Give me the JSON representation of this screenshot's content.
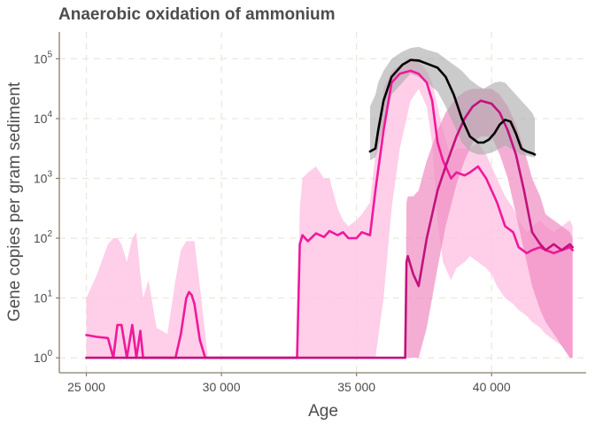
{
  "chart_data": {
    "type": "line",
    "title": "Anaerobic oxidation of ammonium",
    "xlabel": "Age",
    "ylabel": "Gene copies per gram sediment",
    "xlim": [
      24000,
      43500
    ],
    "ylim_log10": [
      -0.25,
      5.45
    ],
    "y_scale": "log10",
    "grid": true,
    "x_ticks": [
      {
        "value": 25000,
        "label": "25 000"
      },
      {
        "value": 30000,
        "label": "30 000"
      },
      {
        "value": 35000,
        "label": "35 000"
      },
      {
        "value": 40000,
        "label": "40 000"
      }
    ],
    "y_ticks": [
      {
        "value": 0,
        "base": "10",
        "exp": "0"
      },
      {
        "value": 1,
        "base": "10",
        "exp": "1"
      },
      {
        "value": 2,
        "base": "10",
        "exp": "2"
      },
      {
        "value": 3,
        "base": "10",
        "exp": "3"
      },
      {
        "value": 4,
        "base": "10",
        "exp": "4"
      },
      {
        "value": 5,
        "base": "10",
        "exp": "5"
      }
    ],
    "series": [
      {
        "color": "#f0199a",
        "band_color": "#ffc2e4",
        "band_opacity": 0.8,
        "x": [
          25000,
          25400,
          25800,
          26000,
          26150,
          26300,
          26500,
          26700,
          26850,
          27000,
          27100,
          27300,
          27600,
          28000,
          28300,
          28500,
          28700,
          28800,
          28900,
          29000,
          29200,
          29400,
          29500,
          30000,
          32800,
          32900,
          33000,
          33200,
          33500,
          33800,
          34000,
          34300,
          34500,
          34700,
          35000,
          35200,
          35500,
          35700,
          36000,
          36300,
          36600,
          37000,
          37300,
          37600,
          37800,
          38000,
          38200,
          38400,
          38500,
          38700,
          39000,
          39200,
          39500,
          39800,
          40000,
          40200,
          40500,
          40800,
          41000,
          41300,
          41500,
          41800,
          42000,
          42300,
          42600,
          42900,
          43000
        ],
        "y": [
          0.38,
          0.35,
          0.33,
          0.0,
          0.55,
          0.55,
          0.0,
          0.55,
          0.0,
          0.45,
          0.0,
          0.0,
          0.0,
          0.0,
          0.0,
          0.4,
          1.0,
          1.1,
          1.05,
          0.9,
          0.3,
          0.0,
          0.0,
          0.0,
          0.0,
          1.9,
          2.05,
          1.95,
          2.08,
          2.02,
          2.12,
          2.05,
          2.1,
          2.0,
          2.0,
          2.1,
          2.05,
          2.8,
          3.8,
          4.6,
          4.75,
          4.8,
          4.75,
          4.6,
          4.3,
          3.6,
          3.3,
          3.1,
          3.0,
          3.1,
          3.05,
          3.1,
          3.2,
          3.0,
          2.8,
          2.6,
          2.2,
          2.1,
          1.85,
          1.75,
          1.8,
          1.85,
          1.8,
          1.75,
          1.8,
          1.85,
          1.8
        ],
        "lower": [
          0.0,
          0.0,
          0.0,
          0.0,
          0.0,
          0.0,
          0.0,
          0.0,
          0.0,
          0.0,
          0.0,
          0.0,
          0.0,
          0.0,
          0.0,
          0.0,
          0.0,
          0.0,
          0.0,
          0.0,
          0.0,
          0.0,
          0.0,
          0.0,
          0.0,
          0.0,
          0.0,
          0.0,
          0.0,
          0.0,
          0.0,
          0.0,
          0.0,
          0.0,
          0.0,
          0.0,
          0.0,
          0.0,
          1.0,
          2.5,
          3.5,
          4.3,
          4.5,
          4.2,
          3.6,
          2.3,
          1.6,
          1.4,
          1.3,
          1.5,
          1.6,
          1.7,
          1.6,
          1.5,
          1.4,
          1.2,
          1.0,
          0.9,
          0.8,
          0.7,
          0.6,
          0.5,
          0.4,
          0.3,
          0.2,
          0.0,
          0.0
        ],
        "upper": [
          1.0,
          1.4,
          1.9,
          2.0,
          2.0,
          1.9,
          1.6,
          2.0,
          2.1,
          1.4,
          1.0,
          1.3,
          0.5,
          0.4,
          1.3,
          1.8,
          1.95,
          1.95,
          1.95,
          1.95,
          1.2,
          0.4,
          0.0,
          0.0,
          0.0,
          2.5,
          3.0,
          3.1,
          3.2,
          3.0,
          3.0,
          2.5,
          2.3,
          2.2,
          2.3,
          2.4,
          2.6,
          3.4,
          4.5,
          4.8,
          4.9,
          5.0,
          4.95,
          4.8,
          4.6,
          4.2,
          3.8,
          3.5,
          3.4,
          3.5,
          3.5,
          3.5,
          3.6,
          3.4,
          3.2,
          3.0,
          2.7,
          2.5,
          2.3,
          2.1,
          2.2,
          2.3,
          2.2,
          2.1,
          2.2,
          2.3,
          2.2
        ]
      },
      {
        "color": "#c2127d",
        "band_color": "#f08cc2",
        "band_opacity": 0.7,
        "x": [
          25000,
          30000,
          36000,
          36800,
          36850,
          36900,
          37100,
          37300,
          37600,
          38000,
          38300,
          38700,
          39000,
          39300,
          39600,
          40000,
          40300,
          40600,
          40900,
          41200,
          41500,
          41800,
          42000,
          42300,
          42600,
          42900,
          43000
        ],
        "y": [
          0.0,
          0.0,
          0.0,
          0.0,
          1.6,
          1.7,
          1.4,
          1.2,
          2.0,
          2.8,
          3.2,
          3.7,
          4.0,
          4.2,
          4.3,
          4.25,
          4.1,
          3.8,
          3.4,
          2.8,
          2.1,
          1.9,
          1.8,
          1.9,
          1.8,
          1.9,
          1.85
        ],
        "lower": [
          0.0,
          0.0,
          0.0,
          0.0,
          0.0,
          0.0,
          0.0,
          0.0,
          0.5,
          1.5,
          2.2,
          2.9,
          3.3,
          3.6,
          3.7,
          3.7,
          3.4,
          3.0,
          2.4,
          1.8,
          1.2,
          0.8,
          0.6,
          0.4,
          0.2,
          0.0,
          0.0
        ],
        "upper": [
          0.0,
          0.0,
          0.0,
          0.0,
          2.6,
          2.7,
          2.7,
          2.8,
          3.3,
          3.8,
          4.1,
          4.35,
          4.45,
          4.5,
          4.5,
          4.5,
          4.4,
          4.2,
          3.9,
          3.5,
          3.0,
          2.7,
          2.4,
          2.3,
          2.2,
          2.1,
          2.0
        ]
      },
      {
        "color": "#000000",
        "band_color": "#a9a9a9",
        "band_opacity": 0.6,
        "x": [
          35500,
          35700,
          35800,
          36000,
          36300,
          36700,
          37000,
          37300,
          37600,
          38000,
          38300,
          38600,
          38900,
          39200,
          39500,
          39700,
          39900,
          40100,
          40300,
          40500,
          40700,
          40900,
          41100,
          41300,
          41500,
          41600
        ],
        "y": [
          3.45,
          3.5,
          3.8,
          4.3,
          4.7,
          4.9,
          4.98,
          4.97,
          4.92,
          4.85,
          4.7,
          4.4,
          4.0,
          3.7,
          3.6,
          3.6,
          3.65,
          3.75,
          3.9,
          3.98,
          3.95,
          3.75,
          3.5,
          3.45,
          3.42,
          3.4
        ],
        "lower": [
          3.3,
          3.35,
          3.5,
          3.9,
          4.4,
          4.6,
          4.75,
          4.7,
          4.6,
          4.45,
          4.2,
          3.9,
          3.6,
          3.45,
          3.4,
          3.4,
          3.42,
          3.45,
          3.5,
          3.55,
          3.5,
          3.45,
          3.4,
          3.38,
          3.36,
          3.35
        ],
        "upper": [
          4.2,
          4.4,
          4.6,
          4.8,
          5.0,
          5.12,
          5.18,
          5.2,
          5.15,
          5.1,
          5.0,
          4.9,
          4.8,
          4.65,
          4.55,
          4.5,
          4.55,
          4.6,
          4.62,
          4.6,
          4.5,
          4.4,
          4.3,
          4.2,
          4.1,
          4.0
        ]
      }
    ]
  }
}
